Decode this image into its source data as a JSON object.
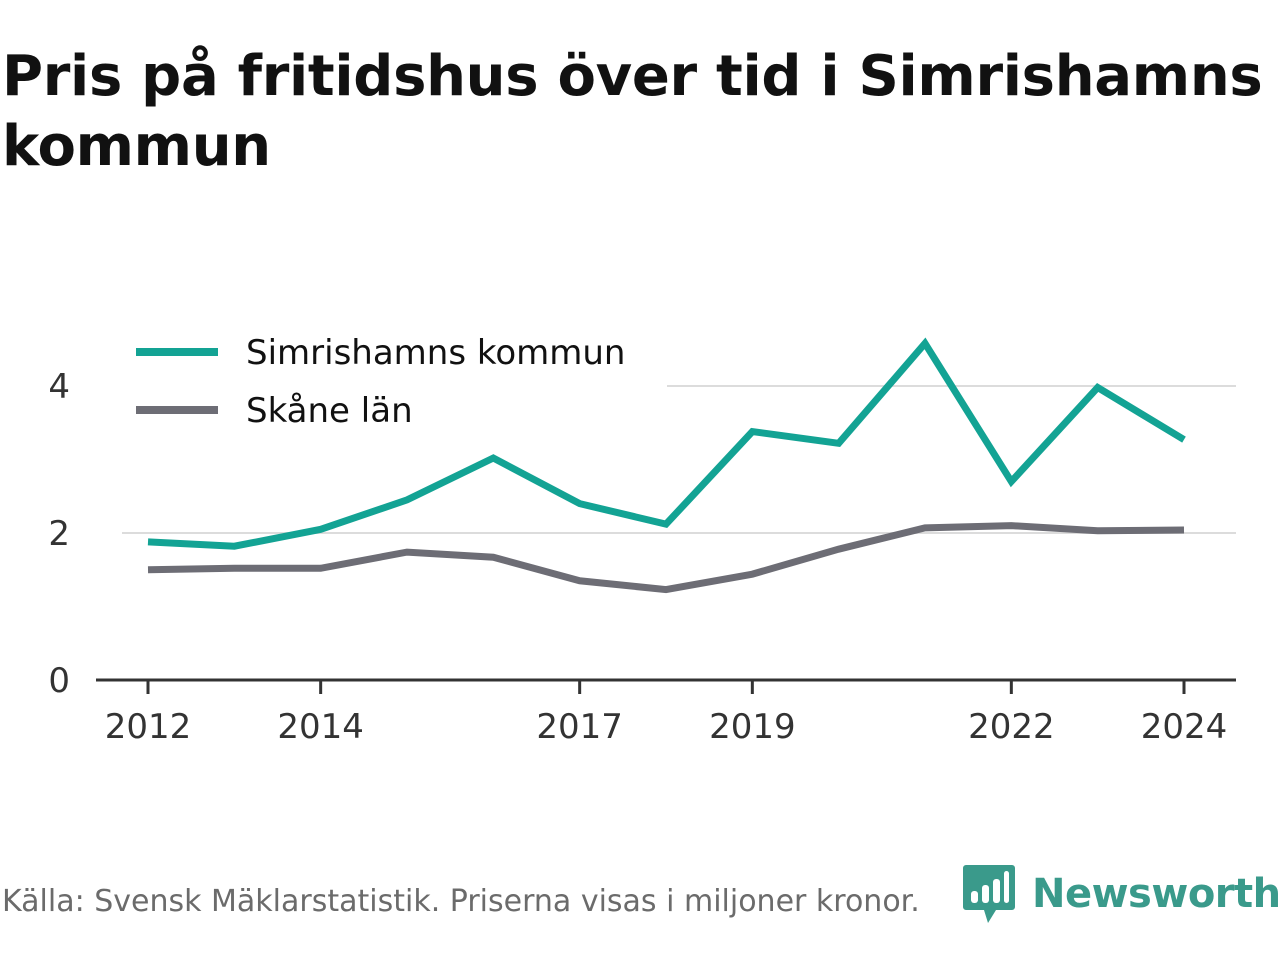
{
  "title": "Pris på fritidshus över tid i Simrishamns kommun",
  "source": "Källa: Svensk Mäklarstatistik. Priserna visas i miljoner kronor.",
  "brand": {
    "name": "Newsworthy",
    "icon": "newsworthy-logo-icon",
    "color": "#3a9a8b"
  },
  "chart_data": {
    "type": "line",
    "title": "Pris på fritidshus över tid i Simrishamns kommun",
    "xlabel": "",
    "ylabel": "",
    "x": [
      2012,
      2013,
      2014,
      2015,
      2016,
      2017,
      2018,
      2019,
      2020,
      2021,
      2022,
      2023,
      2024
    ],
    "x_tick_labels": [
      "2012",
      "2014",
      "2017",
      "2019",
      "2022",
      "2024"
    ],
    "x_tick_values": [
      2012,
      2014,
      2017,
      2019,
      2022,
      2024
    ],
    "y_ticks": [
      0,
      2,
      4
    ],
    "ylim": [
      0,
      4.6
    ],
    "grid": true,
    "legend_position": "top-left",
    "series": [
      {
        "name": "Simrishamns kommun",
        "color": "#13a394",
        "values": [
          1.88,
          1.82,
          2.05,
          2.45,
          3.02,
          2.4,
          2.12,
          3.38,
          3.22,
          4.58,
          2.7,
          3.98,
          3.27
        ]
      },
      {
        "name": "Skåne län",
        "color": "#6d6d75",
        "values": [
          1.5,
          1.52,
          1.52,
          1.74,
          1.67,
          1.35,
          1.23,
          1.44,
          1.78,
          2.07,
          2.1,
          2.03,
          2.04
        ]
      }
    ]
  }
}
